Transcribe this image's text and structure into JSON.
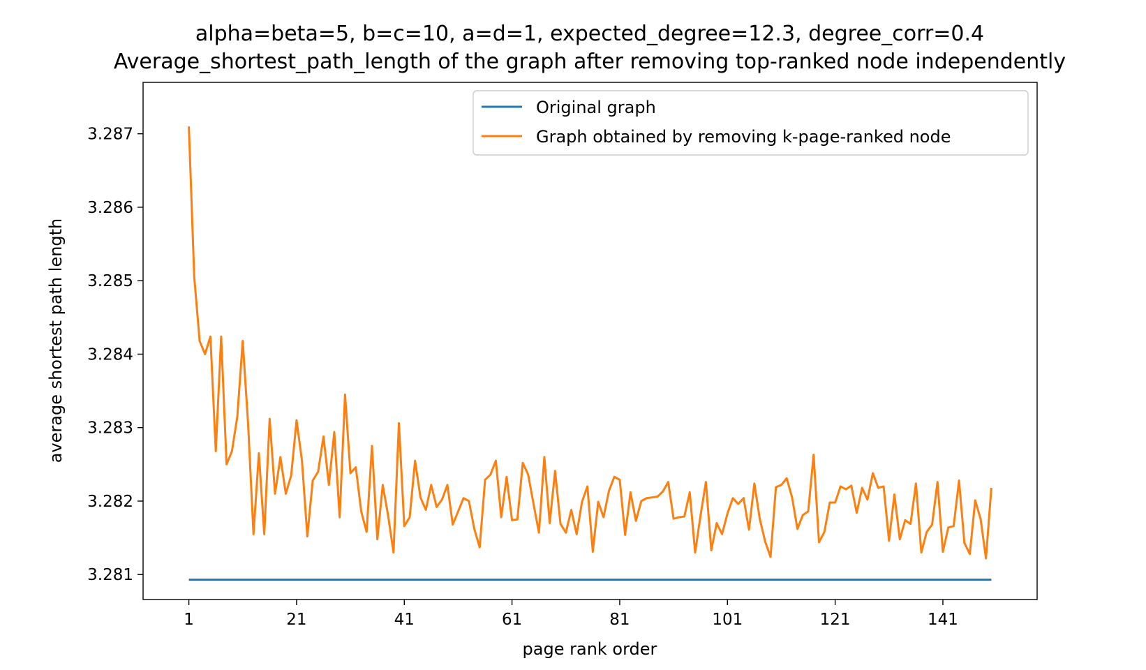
{
  "chart_data": {
    "type": "line",
    "title": "alpha=beta=5, b=c=10, a=d=1, expected_degree=12.3, degree_corr=0.4",
    "subtitle": "Average_shortest_path_length of the graph after removing top-ranked node independently",
    "xlabel": "page rank order",
    "ylabel": "average shortest path length",
    "xlim": [
      -7.5,
      158.5
    ],
    "ylim": [
      3.28066,
      3.2877
    ],
    "xticks": [
      1,
      21,
      41,
      61,
      81,
      101,
      121,
      141
    ],
    "yticks": [
      3.281,
      3.282,
      3.283,
      3.284,
      3.285,
      3.286,
      3.287
    ],
    "ytick_labels": [
      "3.281",
      "3.282",
      "3.283",
      "3.284",
      "3.285",
      "3.286",
      "3.287"
    ],
    "legend_position": "upper right",
    "grid": false,
    "series": [
      {
        "name": "Original graph",
        "color": "#1f77b4",
        "x": [
          1,
          150
        ],
        "y": [
          3.28093,
          3.28093
        ]
      },
      {
        "name": "Graph obtained by removing k-page-ranked node",
        "color": "#ff7f0e",
        "x": [
          1,
          2,
          3,
          4,
          5,
          6,
          7,
          8,
          9,
          10,
          11,
          12,
          13,
          14,
          15,
          16,
          17,
          18,
          19,
          20,
          21,
          22,
          23,
          24,
          25,
          26,
          27,
          28,
          29,
          30,
          31,
          32,
          33,
          34,
          35,
          36,
          37,
          38,
          39,
          40,
          41,
          42,
          43,
          44,
          45,
          46,
          47,
          48,
          49,
          50,
          51,
          52,
          53,
          54,
          55,
          56,
          57,
          58,
          59,
          60,
          61,
          62,
          63,
          64,
          65,
          66,
          67,
          68,
          69,
          70,
          71,
          72,
          73,
          74,
          75,
          76,
          77,
          78,
          79,
          80,
          81,
          82,
          83,
          84,
          85,
          86,
          87,
          88,
          89,
          90,
          91,
          92,
          93,
          94,
          95,
          96,
          97,
          98,
          99,
          100,
          101,
          102,
          103,
          104,
          105,
          106,
          107,
          108,
          109,
          110,
          111,
          112,
          113,
          114,
          115,
          116,
          117,
          118,
          119,
          120,
          121,
          122,
          123,
          124,
          125,
          126,
          127,
          128,
          129,
          130,
          131,
          132,
          133,
          134,
          135,
          136,
          137,
          138,
          139,
          140,
          141,
          142,
          143,
          144,
          145,
          146,
          147,
          148,
          149,
          150
        ],
        "y": [
          3.2871,
          3.28505,
          3.28418,
          3.284,
          3.28424,
          3.28268,
          3.28424,
          3.2825,
          3.28268,
          3.28315,
          3.28418,
          3.28305,
          3.28155,
          3.28265,
          3.28155,
          3.28312,
          3.2821,
          3.2826,
          3.2821,
          3.28235,
          3.2831,
          3.28255,
          3.28152,
          3.28228,
          3.2824,
          3.28288,
          3.28222,
          3.28294,
          3.28178,
          3.28345,
          3.28238,
          3.28246,
          3.28186,
          3.28158,
          3.28275,
          3.28148,
          3.28222,
          3.2818,
          3.2813,
          3.28306,
          3.28166,
          3.28178,
          3.28255,
          3.28205,
          3.28188,
          3.28222,
          3.28192,
          3.28202,
          3.28222,
          3.28168,
          3.28186,
          3.28204,
          3.282,
          3.28162,
          3.28137,
          3.28229,
          3.28236,
          3.28255,
          3.28178,
          3.28233,
          3.28174,
          3.28175,
          3.28252,
          3.28236,
          3.28196,
          3.28157,
          3.2826,
          3.2817,
          3.28241,
          3.28169,
          3.28157,
          3.28188,
          3.28155,
          3.28199,
          3.2822,
          3.28131,
          3.28199,
          3.28178,
          3.28214,
          3.28233,
          3.28229,
          3.28154,
          3.28212,
          3.28173,
          3.282,
          3.28204,
          3.28205,
          3.28206,
          3.28213,
          3.28226,
          3.28176,
          3.28178,
          3.28179,
          3.28212,
          3.2813,
          3.2818,
          3.28226,
          3.28133,
          3.2817,
          3.28155,
          3.28183,
          3.28204,
          3.28196,
          3.28204,
          3.28161,
          3.28224,
          3.28176,
          3.28145,
          3.28124,
          3.28219,
          3.28222,
          3.28231,
          3.28205,
          3.28162,
          3.28181,
          3.28186,
          3.28263,
          3.28144,
          3.28158,
          3.28198,
          3.28198,
          3.2822,
          3.28216,
          3.28221,
          3.28184,
          3.28218,
          3.28202,
          3.28238,
          3.28218,
          3.2822,
          3.28146,
          3.28209,
          3.28148,
          3.28174,
          3.28169,
          3.28224,
          3.2813,
          3.28158,
          3.28168,
          3.28226,
          3.28131,
          3.28164,
          3.28166,
          3.28228,
          3.28143,
          3.28128,
          3.28201,
          3.28176,
          3.28122,
          3.28218
        ]
      }
    ]
  }
}
